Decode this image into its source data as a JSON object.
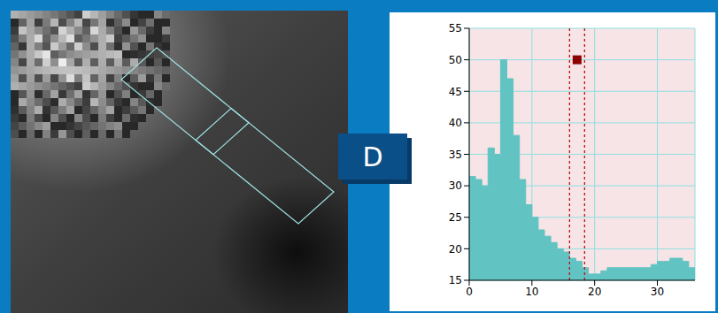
{
  "label": "D",
  "chart_data": {
    "type": "histogram",
    "bins": [
      0,
      1,
      2,
      3,
      4,
      5,
      6,
      7,
      8,
      9,
      10,
      11,
      12,
      13,
      14,
      15,
      16,
      17,
      18,
      19,
      20,
      21,
      22,
      23,
      24,
      25,
      26,
      27,
      28,
      29,
      30,
      31,
      32,
      33,
      34,
      35,
      36
    ],
    "counts": [
      31.5,
      31,
      30,
      36,
      35,
      50,
      47,
      38,
      31,
      27,
      25,
      23,
      22,
      21,
      20,
      19.5,
      18.5,
      18,
      17,
      16,
      16,
      16.5,
      17,
      17,
      17,
      17,
      17,
      17,
      17,
      17.5,
      18,
      18,
      18.5,
      18.5,
      18,
      17
    ],
    "xlim": [
      0,
      36
    ],
    "xticks": [
      0,
      10,
      20,
      30
    ],
    "ylim": [
      15,
      55
    ],
    "yticks": [
      15,
      20,
      25,
      30,
      35,
      40,
      45,
      50,
      55
    ],
    "grid": true,
    "color": "#62c3c3",
    "vlines": [
      16,
      18.4
    ],
    "point": {
      "x": 17.2,
      "y": 50
    }
  }
}
